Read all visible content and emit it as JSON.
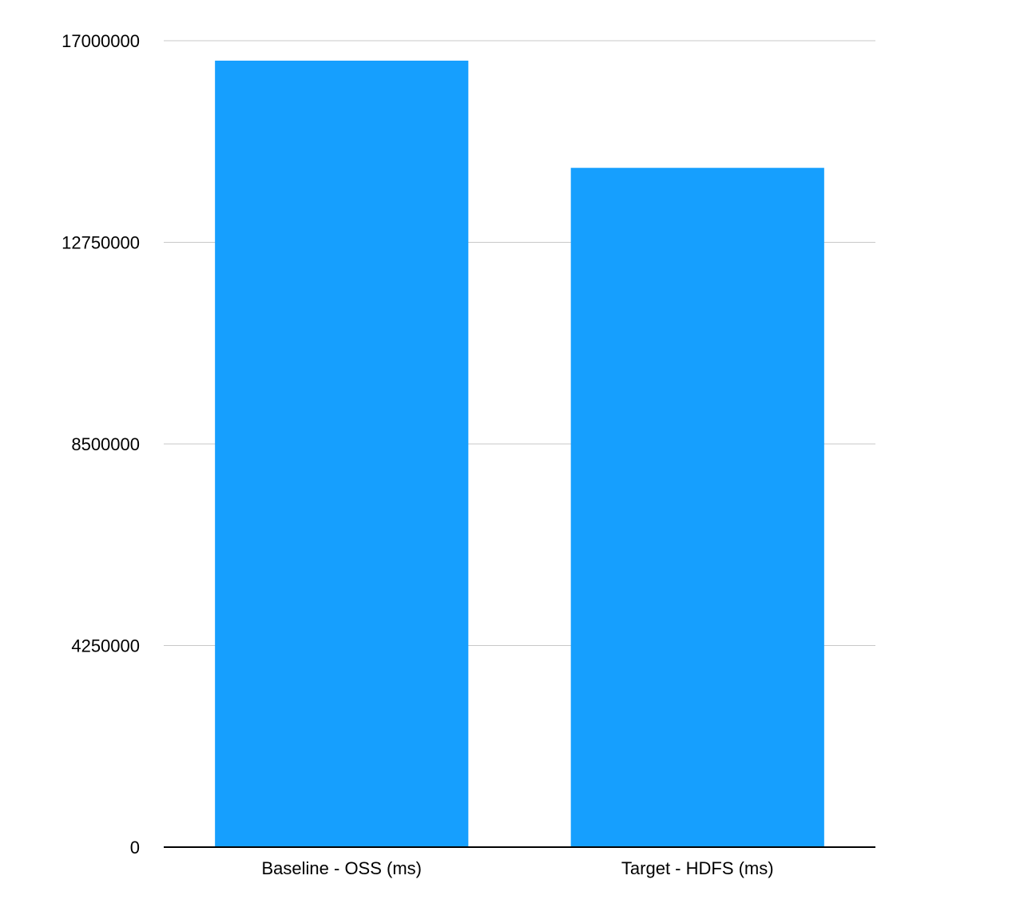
{
  "chart_data": {
    "type": "bar",
    "categories": [
      "Baseline - OSS (ms)",
      "Target - HDFS (ms)"
    ],
    "values": [
      16580000,
      14320000
    ],
    "color": "#169ffe",
    "ylim": [
      0,
      17000000
    ],
    "yticks": [
      0,
      4250000,
      8500000,
      12750000,
      17000000
    ],
    "grid": true
  }
}
